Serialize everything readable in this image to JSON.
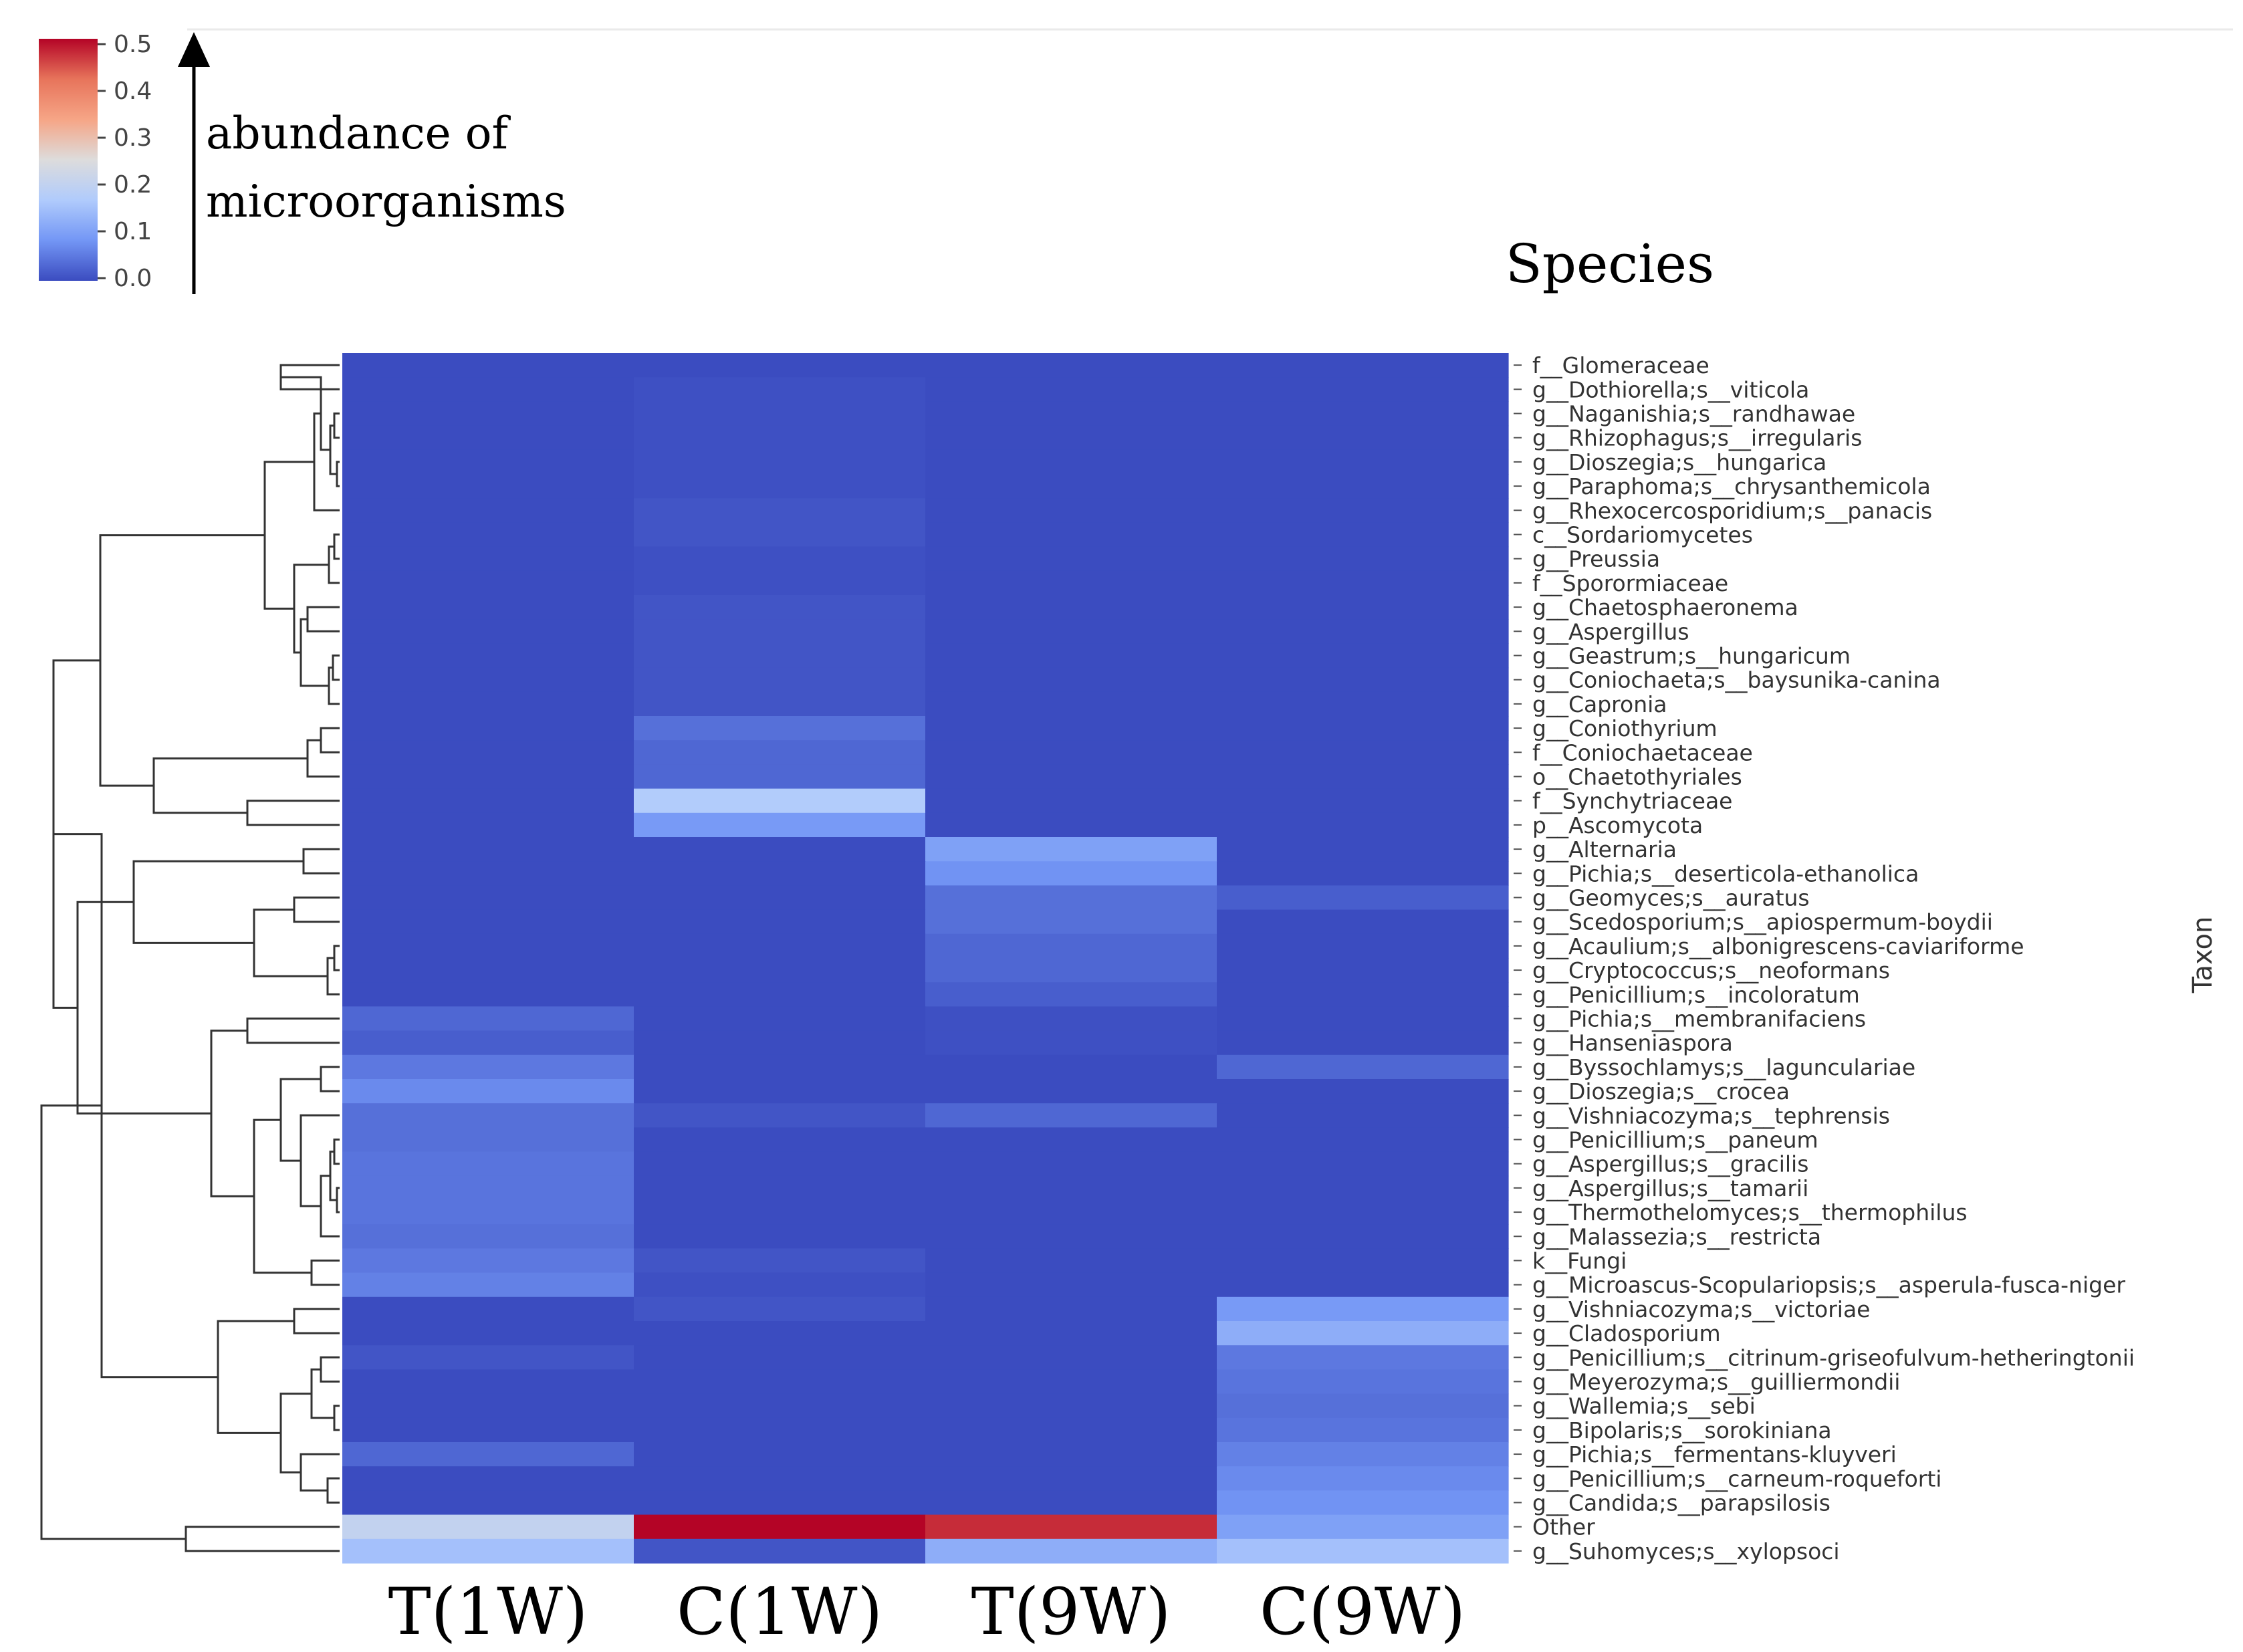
{
  "chart_data": {
    "type": "heatmap",
    "title": "Species",
    "ylabel": "Taxon",
    "colorbar": {
      "label_line1": "abundance of",
      "label_line2": "microorganisms",
      "ticks": [
        "0.5",
        "0.4",
        "0.3",
        "0.2",
        "0.1",
        "0.0"
      ],
      "range": [
        0,
        0.5
      ],
      "colors": [
        "#3b4cc0",
        "#7396f5",
        "#b0cbfc",
        "#dddcdc",
        "#f6a586",
        "#e7745b",
        "#b40426"
      ]
    },
    "columns": [
      "T(1W)",
      "C(1W)",
      "T(9W)",
      "C(9W)"
    ],
    "rows": [
      "f__Glomeraceae",
      "g__Dothiorella;s__viticola",
      "g__Naganishia;s__randhawae",
      "g__Rhizophagus;s__irregularis",
      "g__Dioszegia;s__hungarica",
      "g__Paraphoma;s__chrysanthemicola",
      "g__Rhexocercosporidium;s__panacis",
      "c__Sordariomycetes",
      "g__Preussia",
      "f__Sporormiaceae",
      "g__Chaetosphaeronema",
      "g__Aspergillus",
      "g__Geastrum;s__hungaricum",
      "g__Coniochaeta;s__baysunika-canina",
      "g__Capronia",
      "g__Coniothyrium",
      "f__Coniochaetaceae",
      "o__Chaetothyriales",
      "f__Synchytriaceae",
      "p__Ascomycota",
      "g__Alternaria",
      "g__Pichia;s__deserticola-ethanolica",
      "g__Geomyces;s__auratus",
      "g__Scedosporium;s__apiospermum-boydii",
      "g__Acaulium;s__albonigrescens-caviariforme",
      "g__Cryptococcus;s__neoformans",
      "g__Penicillium;s__incoloratum",
      "g__Pichia;s__membranifaciens",
      "g__Hanseniaspora",
      "g__Byssochlamys;s__lagunculariae",
      "g__Dioszegia;s__crocea",
      "g__Vishniacozyma;s__tephrensis",
      "g__Penicillium;s__paneum",
      "g__Aspergillus;s__gracilis",
      "g__Aspergillus;s__tamarii",
      "g__Thermothelomyces;s__thermophilus",
      "g__Malassezia;s__restricta",
      "k__Fungi",
      "g__Microascus-Scopulariopsis;s__asperula-fusca-niger",
      "g__Vishniacozyma;s__victoriae",
      "g__Cladosporium",
      "g__Penicillium;s__citrinum-griseofulvum-hetheringtonii",
      "g__Meyerozyma;s__guilliermondii",
      "g__Wallemia;s__sebi",
      "g__Bipolaris;s__sorokiniana",
      "g__Pichia;s__fermentans-kluyveri",
      "g__Penicillium;s__carneum-roqueforti",
      "g__Candida;s__parapsilosis",
      "Other",
      "g__Suhomyces;s__xylopsoci"
    ],
    "values": [
      [
        0.0,
        0.0,
        0.0,
        0.0
      ],
      [
        0.0,
        0.005,
        0.0,
        0.0
      ],
      [
        0.0,
        0.005,
        0.0,
        0.0
      ],
      [
        0.0,
        0.005,
        0.0,
        0.0
      ],
      [
        0.0,
        0.005,
        0.0,
        0.0
      ],
      [
        0.0,
        0.005,
        0.0,
        0.0
      ],
      [
        0.0,
        0.01,
        0.0,
        0.0
      ],
      [
        0.0,
        0.01,
        0.0,
        0.0
      ],
      [
        0.0,
        0.005,
        0.0,
        0.0
      ],
      [
        0.0,
        0.005,
        0.0,
        0.0
      ],
      [
        0.0,
        0.01,
        0.0,
        0.0
      ],
      [
        0.0,
        0.01,
        0.0,
        0.0
      ],
      [
        0.0,
        0.01,
        0.0,
        0.0
      ],
      [
        0.0,
        0.01,
        0.0,
        0.0
      ],
      [
        0.0,
        0.01,
        0.0,
        0.0
      ],
      [
        0.0,
        0.04,
        0.0,
        0.0
      ],
      [
        0.0,
        0.03,
        0.0,
        0.0
      ],
      [
        0.0,
        0.03,
        0.0,
        0.0
      ],
      [
        0.0,
        0.17,
        0.0,
        0.0
      ],
      [
        0.0,
        0.09,
        0.0,
        0.0
      ],
      [
        0.0,
        0.0,
        0.1,
        0.0
      ],
      [
        0.0,
        0.0,
        0.08,
        0.0
      ],
      [
        0.0,
        0.0,
        0.04,
        0.02
      ],
      [
        0.0,
        0.0,
        0.04,
        0.0
      ],
      [
        0.0,
        0.0,
        0.03,
        0.0
      ],
      [
        0.0,
        0.0,
        0.03,
        0.0
      ],
      [
        0.0,
        0.0,
        0.02,
        0.0
      ],
      [
        0.03,
        0.0,
        0.005,
        0.0
      ],
      [
        0.02,
        0.0,
        0.005,
        0.0
      ],
      [
        0.05,
        0.0,
        0.0,
        0.03
      ],
      [
        0.07,
        0.0,
        0.0,
        0.0
      ],
      [
        0.04,
        0.01,
        0.03,
        0.0
      ],
      [
        0.04,
        0.0,
        0.0,
        0.0
      ],
      [
        0.045,
        0.0,
        0.0,
        0.0
      ],
      [
        0.045,
        0.0,
        0.0,
        0.0
      ],
      [
        0.045,
        0.0,
        0.0,
        0.0
      ],
      [
        0.04,
        0.0,
        0.0,
        0.0
      ],
      [
        0.05,
        0.01,
        0.0,
        0.0
      ],
      [
        0.06,
        0.005,
        0.0,
        0.0
      ],
      [
        0.0,
        0.01,
        0.0,
        0.09
      ],
      [
        0.0,
        0.0,
        0.0,
        0.12
      ],
      [
        0.01,
        0.0,
        0.0,
        0.05
      ],
      [
        0.0,
        0.0,
        0.0,
        0.045
      ],
      [
        0.0,
        0.0,
        0.0,
        0.04
      ],
      [
        0.0,
        0.0,
        0.0,
        0.045
      ],
      [
        0.03,
        0.0,
        0.0,
        0.06
      ],
      [
        0.0,
        0.0,
        0.0,
        0.07
      ],
      [
        0.0,
        0.0,
        0.0,
        0.08
      ],
      [
        0.2,
        0.5,
        0.47,
        0.1
      ],
      [
        0.15,
        0.01,
        0.12,
        0.15
      ]
    ]
  }
}
